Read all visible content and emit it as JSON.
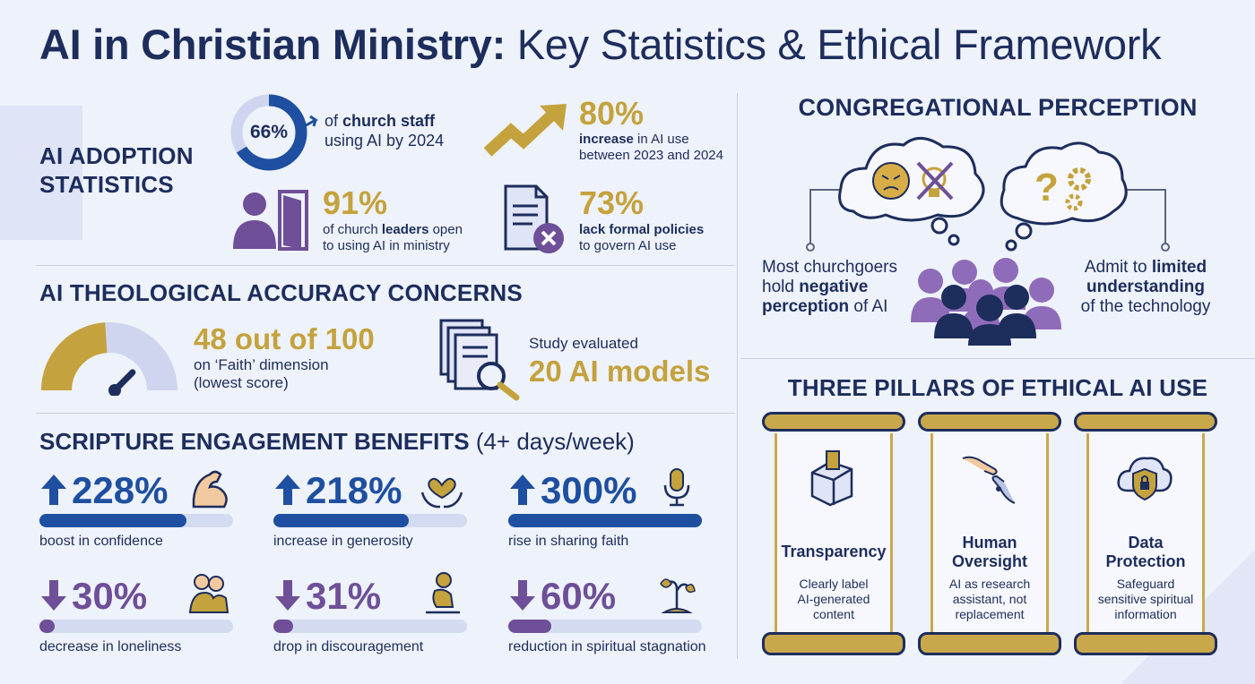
{
  "title": {
    "bold": "AI in Christian Ministry:",
    "rest": " Key Statistics & Ethical Framework"
  },
  "adoption": {
    "heading_line1": "AI ADOPTION",
    "heading_line2": "STATISTICS",
    "staff": {
      "value": "66%",
      "percent": 66,
      "line1_pre": "of ",
      "line1_bold": "church staff",
      "line2": "using AI by 2024"
    },
    "increase": {
      "value": "80%",
      "line1_bold": "increase",
      "line1_rest": " in AI use",
      "line2": "between 2023 and 2024"
    },
    "leaders": {
      "value": "91%",
      "line1_pre": "of church ",
      "line1_bold": "leaders",
      "line1_rest": " open",
      "line2": "to using AI in ministry"
    },
    "policies": {
      "value": "73%",
      "line1_bold": "lack formal policies",
      "line2": "to govern AI use"
    }
  },
  "theology": {
    "heading": "AI THEOLOGICAL ACCURACY CONCERNS",
    "score": {
      "value": "48 out of 100",
      "numeric": 48,
      "line1": "on ‘Faith’ dimension",
      "line2": "(lowest score)"
    },
    "study": {
      "line1": "Study evaluated",
      "value": "20 AI models"
    }
  },
  "engagement": {
    "heading": "SCRIPTURE ENGAGEMENT BENEFITS",
    "heading_suffix": " (4+ days/week)",
    "items": [
      {
        "direction": "up",
        "value": "228%",
        "caption": "boost in confidence",
        "fill": 0.76,
        "icon": "muscle-icon"
      },
      {
        "direction": "up",
        "value": "218%",
        "caption": "increase in generosity",
        "fill": 0.7,
        "icon": "heart-hands-icon"
      },
      {
        "direction": "up",
        "value": "300%",
        "caption": "rise in sharing faith",
        "fill": 1.0,
        "icon": "microphone-icon"
      },
      {
        "direction": "down",
        "value": "30%",
        "caption": "decrease in loneliness",
        "fill": 0.08,
        "icon": "hug-icon"
      },
      {
        "direction": "down",
        "value": "31%",
        "caption": "drop in discouragement",
        "fill": 0.1,
        "icon": "sitting-person-icon"
      },
      {
        "direction": "down",
        "value": "60%",
        "caption": "reduction in spiritual stagnation",
        "fill": 0.22,
        "icon": "wilting-plant-icon"
      }
    ]
  },
  "perception": {
    "heading": "CONGREGATIONAL PERCEPTION",
    "left": {
      "line1": "Most churchgoers",
      "line2_pre": "hold ",
      "line2_bold": "negative",
      "line3_bold": "perception",
      "line3_rest": " of AI"
    },
    "right": {
      "line1_pre": "Admit to ",
      "line1_bold": "limited",
      "line2_bold": "understanding",
      "line3": "of the technology"
    }
  },
  "pillars": {
    "heading": "THREE PILLARS OF ETHICAL AI USE",
    "items": [
      {
        "title_line1": "Transparency",
        "title_line2": "",
        "desc": [
          "Clearly label",
          "AI-generated",
          "content"
        ],
        "icon": "ballot-box-icon"
      },
      {
        "title_line1": "Human",
        "title_line2": "Oversight",
        "desc": [
          "AI as research",
          "assistant, not",
          "replacement"
        ],
        "icon": "hand-robot-icon"
      },
      {
        "title_line1": "Data",
        "title_line2": "Protection",
        "desc": [
          "Safeguard",
          "sensitive spiritual",
          "information"
        ],
        "icon": "shield-cloud-icon"
      }
    ]
  },
  "colors": {
    "navy": "#1d2d5c",
    "gold": "#c4a23d",
    "blue": "#1e4fa0",
    "purple": "#6e4f98",
    "lavender": "#cfd5ee"
  }
}
